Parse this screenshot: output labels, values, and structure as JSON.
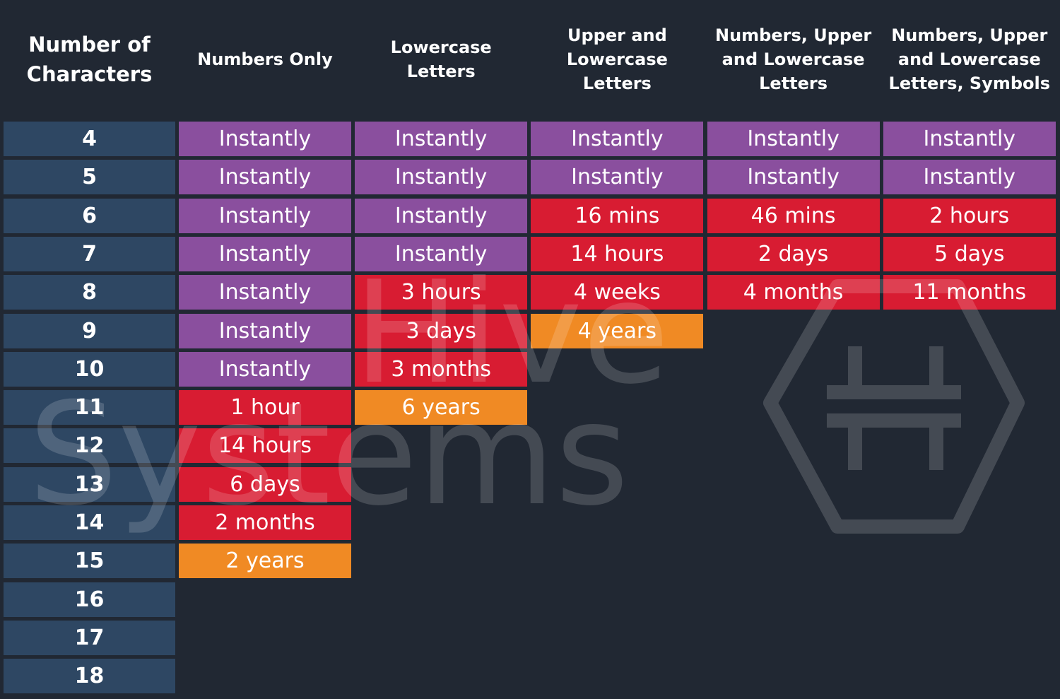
{
  "header": {
    "columns": [
      [
        "Number of",
        "Characters"
      ],
      [
        "Numbers Only"
      ],
      [
        "Lowercase",
        "Letters"
      ],
      [
        "Upper and",
        "Lowercase",
        "Letters"
      ],
      [
        "Numbers, Upper",
        "and Lowercase",
        "Letters"
      ],
      [
        "Numbers, Upper",
        "and Lowercase",
        "Letters, Symbols"
      ]
    ]
  },
  "table": {
    "rows": [
      {
        "label": "4",
        "cells": [
          {
            "text": "Instantly",
            "color": "#8a4f9e"
          },
          {
            "text": "Instantly",
            "color": "#8a4f9e"
          },
          {
            "text": "Instantly",
            "color": "#8a4f9e"
          },
          {
            "text": "Instantly",
            "color": "#8a4f9e"
          },
          {
            "text": "Instantly",
            "color": "#8a4f9e"
          }
        ]
      },
      {
        "label": "5",
        "cells": [
          {
            "text": "Instantly",
            "color": "#8a4f9e"
          },
          {
            "text": "Instantly",
            "color": "#8a4f9e"
          },
          {
            "text": "Instantly",
            "color": "#8a4f9e"
          },
          {
            "text": "Instantly",
            "color": "#8a4f9e"
          },
          {
            "text": "Instantly",
            "color": "#8a4f9e"
          }
        ]
      },
      {
        "label": "6",
        "cells": [
          {
            "text": "Instantly",
            "color": "#8a4f9e"
          },
          {
            "text": "Instantly",
            "color": "#8a4f9e"
          },
          {
            "text": "16 mins",
            "color": "#d81c32"
          },
          {
            "text": "46 mins",
            "color": "#d81c32"
          },
          {
            "text": "2 hours",
            "color": "#d81c32"
          }
        ]
      },
      {
        "label": "7",
        "cells": [
          {
            "text": "Instantly",
            "color": "#8a4f9e"
          },
          {
            "text": "Instantly",
            "color": "#8a4f9e"
          },
          {
            "text": "14 hours",
            "color": "#d81c32"
          },
          {
            "text": "2 days",
            "color": "#d81c32"
          },
          {
            "text": "5 days",
            "color": "#d81c32"
          }
        ]
      },
      {
        "label": "8",
        "cells": [
          {
            "text": "Instantly",
            "color": "#8a4f9e"
          },
          {
            "text": "3 hours",
            "color": "#d81c32"
          },
          {
            "text": "4 weeks",
            "color": "#d81c32"
          },
          {
            "text": "4 months",
            "color": "#d81c32"
          },
          {
            "text": "11 months",
            "color": "#d81c32"
          }
        ]
      },
      {
        "label": "9",
        "cells": [
          {
            "text": "Instantly",
            "color": "#8a4f9e"
          },
          {
            "text": "3 days",
            "color": "#d81c32"
          },
          {
            "text": "4 years",
            "color": "#f08a24"
          }
        ]
      },
      {
        "label": "10",
        "cells": [
          {
            "text": "Instantly",
            "color": "#8a4f9e"
          },
          {
            "text": "3 months",
            "color": "#d81c32"
          }
        ]
      },
      {
        "label": "11",
        "cells": [
          {
            "text": "1 hour",
            "color": "#d81c32"
          },
          {
            "text": "6 years",
            "color": "#f08a24"
          }
        ]
      },
      {
        "label": "12",
        "cells": [
          {
            "text": "14 hours",
            "color": "#d81c32"
          }
        ]
      },
      {
        "label": "13",
        "cells": [
          {
            "text": "6 days",
            "color": "#d81c32"
          }
        ]
      },
      {
        "label": "14",
        "cells": [
          {
            "text": "2 months",
            "color": "#d81c32"
          }
        ]
      },
      {
        "label": "15",
        "cells": [
          {
            "text": "2 years",
            "color": "#f08a24"
          }
        ]
      },
      {
        "label": "16",
        "cells": []
      },
      {
        "label": "17",
        "cells": []
      },
      {
        "label": "18",
        "cells": []
      }
    ]
  },
  "watermark": {
    "lines": [
      "Hive",
      "Systems"
    ]
  }
}
